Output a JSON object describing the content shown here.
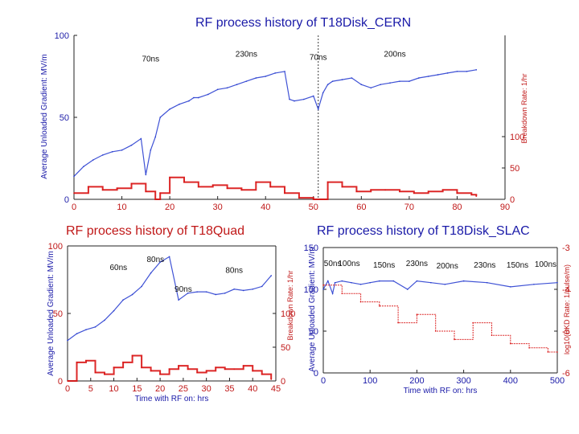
{
  "titles": {
    "cern": "RF process history of T18Disk_CERN",
    "quad": "RF process history of T18Quad",
    "slac": "RF process history of T18Disk_SLAC"
  },
  "colors": {
    "gradient": "#2a3fd0",
    "bkd": "#d81010",
    "marker": "#3a3a3a"
  },
  "chart_data": [
    {
      "id": "cern",
      "type": "line",
      "title": "RF process history of T18Disk_CERN",
      "ylabel": "Average Unloaded Gradient: MV/m",
      "y2label": "Breakdown Rate: 1/hr",
      "xlim": [
        0,
        90
      ],
      "ylim": [
        0,
        100
      ],
      "y2lim": [
        0,
        500
      ],
      "x_ticks": [
        "0",
        "10",
        "20",
        "30",
        "40",
        "50",
        "60",
        "70",
        "80",
        "90"
      ],
      "y_ticks": [
        "0",
        "50",
        "100"
      ],
      "y2_ticks": [
        "0",
        "50",
        "100"
      ],
      "annotations": [
        {
          "text": "70ns",
          "x": 16,
          "y": 84
        },
        {
          "text": "230ns",
          "x": 36,
          "y": 87
        },
        {
          "text": "70ns",
          "x": 51,
          "y": 85
        },
        {
          "text": "200ns",
          "x": 67,
          "y": 87
        }
      ],
      "markers_x": [
        51
      ],
      "series": [
        {
          "role": "gradient",
          "x": [
            0,
            2,
            4,
            6,
            8,
            10,
            12,
            14,
            15,
            16,
            17,
            18,
            20,
            22,
            24,
            25,
            26,
            28,
            30,
            32,
            34,
            36,
            38,
            40,
            42,
            44,
            45,
            46,
            48,
            50,
            51,
            52,
            53,
            54,
            56,
            58,
            60,
            62,
            64,
            66,
            68,
            70,
            72,
            74,
            76,
            78,
            80,
            82,
            84
          ],
          "y": [
            14,
            20,
            24,
            27,
            29,
            30,
            33,
            37,
            15,
            30,
            38,
            50,
            55,
            58,
            60,
            62,
            62,
            64,
            67,
            68,
            70,
            72,
            74,
            75,
            77,
            78,
            61,
            60,
            61,
            63,
            55,
            65,
            70,
            72,
            73,
            74,
            70,
            68,
            70,
            71,
            72,
            72,
            74,
            75,
            76,
            77,
            78,
            78,
            79
          ]
        },
        {
          "role": "bkd",
          "x": [
            0,
            3,
            6,
            9,
            12,
            15,
            17,
            18,
            20,
            23,
            26,
            29,
            32,
            35,
            38,
            41,
            44,
            47,
            50,
            53,
            56,
            59,
            62,
            65,
            68,
            71,
            74,
            77,
            80,
            83,
            84
          ],
          "y": [
            20,
            40,
            30,
            35,
            50,
            25,
            0,
            20,
            70,
            55,
            40,
            45,
            35,
            30,
            55,
            40,
            20,
            5,
            0,
            55,
            40,
            25,
            30,
            30,
            25,
            20,
            25,
            30,
            20,
            15,
            10
          ]
        }
      ]
    },
    {
      "id": "quad",
      "type": "line",
      "title": "RF process history of T18Quad",
      "xlabel": "Time with RF on: hrs",
      "ylabel": "Average Unloaded Gradient: MV/m",
      "y2label": "Breakdown Rate: 1/hr",
      "xlim": [
        0,
        45
      ],
      "ylim": [
        0,
        100
      ],
      "y2lim": [
        0,
        500
      ],
      "x_ticks": [
        "0",
        "5",
        "10",
        "15",
        "20",
        "25",
        "30",
        "35",
        "40",
        "45"
      ],
      "y_ticks": [
        "0",
        "50",
        "100"
      ],
      "y2_ticks": [
        "0",
        "50",
        "100"
      ],
      "annotations": [
        {
          "text": "60ns",
          "x": 11,
          "y": 82
        },
        {
          "text": "80ns",
          "x": 19,
          "y": 88
        },
        {
          "text": "90ns",
          "x": 25,
          "y": 66
        },
        {
          "text": "80ns",
          "x": 36,
          "y": 80
        }
      ],
      "series": [
        {
          "role": "gradient",
          "x": [
            0,
            2,
            4,
            6,
            8,
            10,
            12,
            14,
            16,
            18,
            20,
            22,
            24,
            26,
            28,
            30,
            32,
            34,
            36,
            38,
            40,
            42,
            44
          ],
          "y": [
            30,
            35,
            38,
            40,
            45,
            52,
            60,
            64,
            70,
            80,
            88,
            92,
            60,
            65,
            66,
            66,
            64,
            65,
            68,
            67,
            68,
            70,
            78
          ]
        },
        {
          "role": "bkd",
          "x": [
            0,
            2,
            4,
            6,
            8,
            10,
            12,
            14,
            16,
            18,
            20,
            22,
            24,
            26,
            28,
            30,
            32,
            34,
            36,
            38,
            40,
            42,
            44
          ],
          "y": [
            0,
            55,
            60,
            25,
            20,
            40,
            55,
            75,
            40,
            30,
            20,
            35,
            45,
            35,
            25,
            30,
            40,
            35,
            35,
            45,
            30,
            20,
            5
          ]
        }
      ]
    },
    {
      "id": "slac",
      "type": "line",
      "title": "RF process history of T18Disk_SLAC",
      "xlabel": "Time with RF on: hrs",
      "ylabel": "Average Unloaded Gradient: MV/m",
      "y2label": "log10(BKD Rate: 1/pulse/m)",
      "xlim": [
        0,
        500
      ],
      "ylim": [
        0,
        150
      ],
      "y2lim": [
        -6,
        -3
      ],
      "x_ticks": [
        "0",
        "100",
        "200",
        "300",
        "400",
        "500"
      ],
      "y_ticks": [
        "0",
        "50",
        "100",
        "150"
      ],
      "y2_ticks": [
        "-6",
        "-5",
        "-4",
        "-3"
      ],
      "annotations": [
        {
          "text": "50ns",
          "x": 20,
          "y": 128
        },
        {
          "text": "100ns",
          "x": 55,
          "y": 128
        },
        {
          "text": "150ns",
          "x": 130,
          "y": 126
        },
        {
          "text": "230ns",
          "x": 200,
          "y": 128
        },
        {
          "text": "200ns",
          "x": 265,
          "y": 125
        },
        {
          "text": "230ns",
          "x": 345,
          "y": 126
        },
        {
          "text": "150ns",
          "x": 415,
          "y": 126
        },
        {
          "text": "100ns",
          "x": 475,
          "y": 127
        }
      ],
      "series": [
        {
          "role": "gradient",
          "x": [
            0,
            10,
            20,
            25,
            40,
            60,
            80,
            100,
            120,
            150,
            180,
            200,
            230,
            260,
            300,
            350,
            400,
            450,
            500
          ],
          "y": [
            100,
            110,
            95,
            108,
            110,
            108,
            106,
            108,
            110,
            110,
            100,
            110,
            108,
            106,
            110,
            108,
            103,
            106,
            108
          ]
        },
        {
          "role": "bkd",
          "x": [
            0,
            40,
            80,
            120,
            160,
            200,
            240,
            280,
            320,
            360,
            400,
            440,
            480,
            500
          ],
          "y": [
            -3.9,
            -4.1,
            -4.3,
            -4.4,
            -4.8,
            -4.6,
            -5.0,
            -5.2,
            -4.8,
            -5.1,
            -5.3,
            -5.4,
            -5.5,
            -5.5
          ]
        }
      ]
    }
  ]
}
